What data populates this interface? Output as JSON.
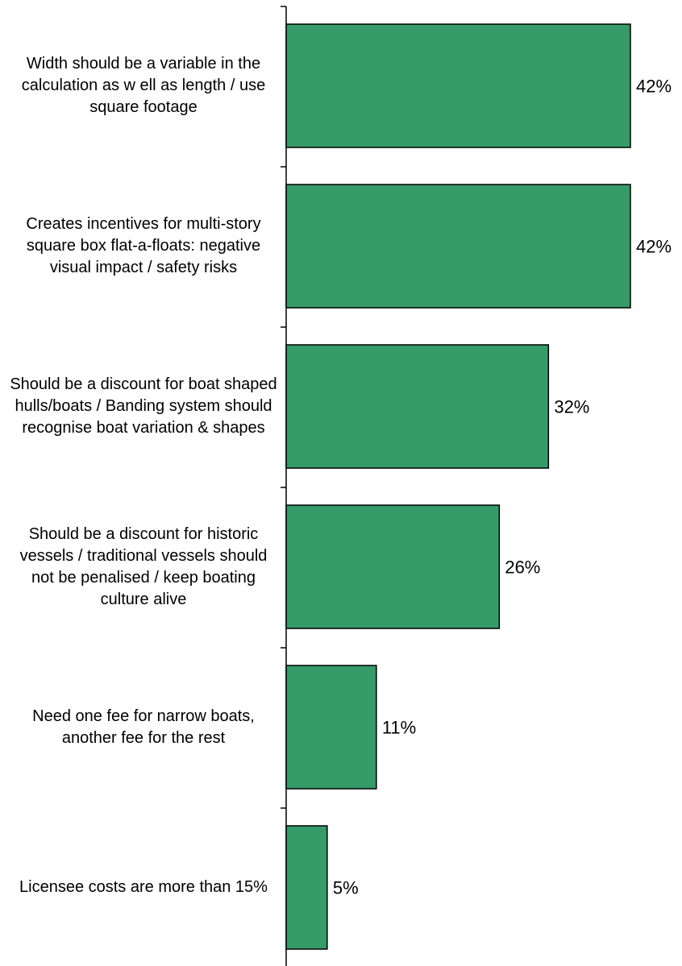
{
  "chart_data": {
    "type": "bar",
    "orientation": "horizontal",
    "categories": [
      "Width should be a variable in the calculation as w ell as length / use square footage",
      "Creates incentives for multi-story square box flat-a-floats: negative visual impact / safety risks",
      "Should be a discount for boat shaped hulls/boats  / Banding system should recognise boat variation & shapes",
      "Should be a discount for historic vessels / traditional vessels should not be penalised / keep boating culture alive",
      "Need one fee for narrow  boats, another fee for the rest",
      "Licensee costs are more than 15%"
    ],
    "values": [
      42,
      42,
      32,
      26,
      11,
      5
    ],
    "value_labels": [
      "42%",
      "42%",
      "32%",
      "26%",
      "11%",
      "5%"
    ],
    "xlim": [
      0,
      42
    ],
    "bar_color": "#359b68",
    "grid": false,
    "legend": "none"
  }
}
